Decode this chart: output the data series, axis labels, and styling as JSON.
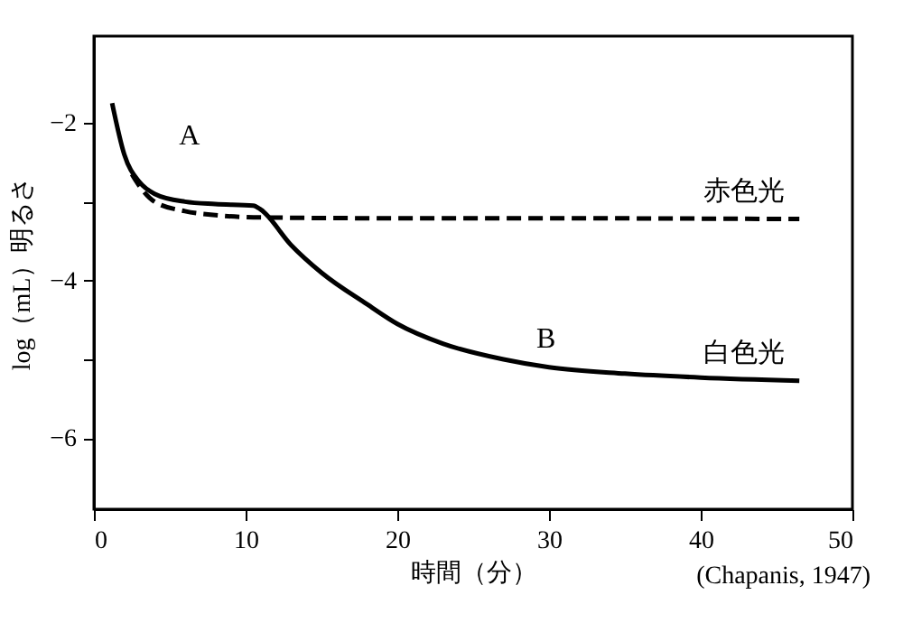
{
  "chart_data": {
    "type": "line",
    "xlabel": "時間（分）",
    "ylabel": "log（mL）明るさ",
    "xlim": [
      0,
      50
    ],
    "xticks": [
      0,
      10,
      20,
      30,
      40,
      50
    ],
    "ylim": [
      -6.9,
      -0.9
    ],
    "yticks": [
      -2,
      {
        "value": -3,
        "label": null
      },
      -4,
      {
        "value": -5,
        "label": null
      },
      -6
    ],
    "grid": false,
    "marker": "none",
    "series": [
      {
        "name": "白色光",
        "color": "#000000",
        "line_style": "solid",
        "x": [
          1.2,
          2,
          3,
          4,
          6,
          8,
          10.5,
          11,
          13,
          15,
          18,
          20,
          23,
          27,
          30,
          35,
          40,
          46.5
        ],
        "values": [
          -1.75,
          -2.4,
          -2.75,
          -2.9,
          -3.0,
          -3.03,
          -3.05,
          -3.1,
          -3.55,
          -3.9,
          -4.3,
          -4.55,
          -4.8,
          -5.0,
          -5.1,
          -5.18,
          -5.23,
          -5.27
        ]
      },
      {
        "name": "赤色光",
        "color": "#000000",
        "line_style": "dashed",
        "x": [
          2.5,
          3,
          4,
          6,
          8,
          11,
          20,
          30,
          46.5
        ],
        "values": [
          -2.65,
          -2.8,
          -3.0,
          -3.12,
          -3.17,
          -3.2,
          -3.21,
          -3.21,
          -3.22
        ]
      }
    ],
    "annotations": [
      "A",
      "B",
      "(Chapanis, 1947)"
    ]
  }
}
